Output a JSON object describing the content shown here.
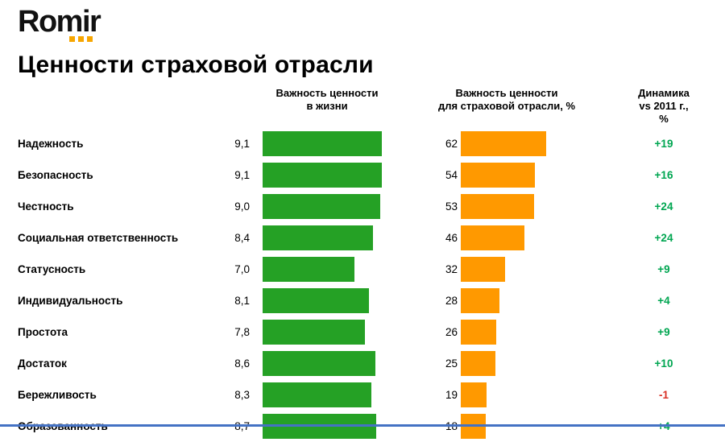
{
  "logo": {
    "text": "Romir"
  },
  "title": "Ценности страховой отрасли",
  "headers": {
    "life": [
      "Важность ценности",
      "в жизни"
    ],
    "industry": [
      "Важность ценности",
      "для страховой отрасли, %"
    ],
    "dynamics": [
      "Динамика",
      "vs 2011 г., %"
    ]
  },
  "chart_data": {
    "type": "bar",
    "title": "Ценности страховой отрасли",
    "orientation": "horizontal",
    "grid": false,
    "legend": "none",
    "categories": [
      "Надежность",
      "Безопасность",
      "Честность",
      "Социальная ответственность",
      "Статусность",
      "Индивидуальность",
      "Простота",
      "Достаток",
      "Бережливость",
      "Образованность"
    ],
    "series": [
      {
        "name": "Важность ценности в жизни",
        "values": [
          9.1,
          9.1,
          9.0,
          8.4,
          7.0,
          8.1,
          7.8,
          8.6,
          8.3,
          8.7
        ],
        "labels": [
          "9,1",
          "9,1",
          "9,0",
          "8,4",
          "7,0",
          "8,1",
          "7,8",
          "8,6",
          "8,3",
          "8,7"
        ],
        "axis_max": 9.1,
        "color": "#25a125"
      },
      {
        "name": "Важность ценности для страховой отрасли, %",
        "values": [
          62,
          54,
          53,
          46,
          32,
          28,
          26,
          25,
          19,
          18
        ],
        "labels": [
          "62",
          "54",
          "53",
          "46",
          "32",
          "28",
          "26",
          "25",
          "19",
          "18"
        ],
        "axis_max": 62,
        "color": "#ff9900"
      },
      {
        "name": "Динамика vs 2011 г., %",
        "values": [
          19,
          16,
          24,
          24,
          9,
          4,
          9,
          10,
          -1,
          4
        ],
        "labels": [
          "+19",
          "+16",
          "+24",
          "+24",
          "+9",
          "+4",
          "+9",
          "+10",
          "-1",
          "+4"
        ]
      }
    ]
  },
  "colors": {
    "green_bar": "#25a125",
    "orange_bar": "#ff9900",
    "positive": "#00a651",
    "negative": "#d93025",
    "footer_line": "#4472c4",
    "logo_dots": "#f7a600"
  }
}
